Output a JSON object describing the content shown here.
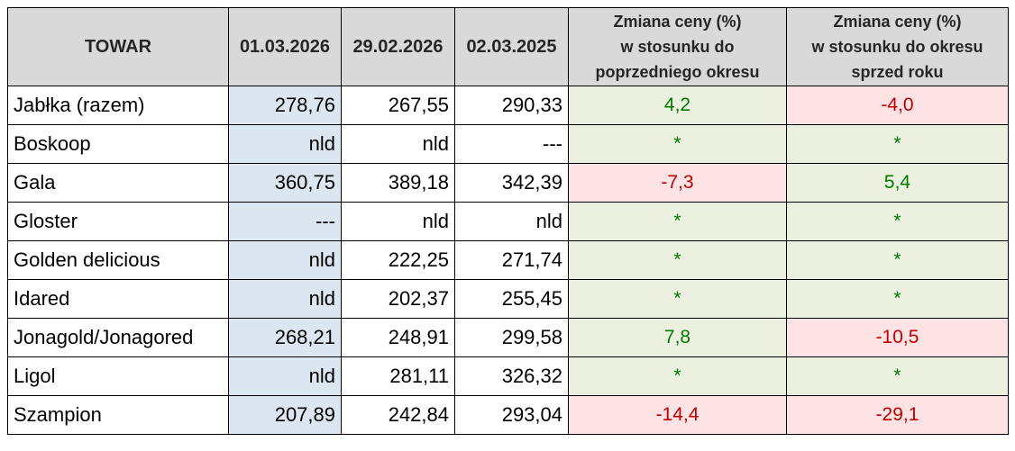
{
  "header": {
    "product": "TOWAR",
    "date1": "01.03.2026",
    "date2": "29.02.2026",
    "date3": "02.03.2025",
    "change_prev": [
      "Zmiana ceny (%)",
      "w stosunku do",
      "poprzedniego okresu"
    ],
    "change_year": [
      "Zmiana ceny (%)",
      "w stosunku do okresu",
      "sprzed roku"
    ]
  },
  "colors": {
    "current_col": "#dce6f1",
    "positive_bg": "#ebf1de",
    "positive_text": "#007a00",
    "negative_bg": "#fde3e4",
    "negative_text": "#c00000"
  },
  "rows": [
    {
      "name": "Jabłka (razem)",
      "v1": "278,76",
      "v2": "267,55",
      "v3": "290,33",
      "c1": "4,2",
      "c1s": "pos",
      "c2": "-4,0",
      "c2s": "neg"
    },
    {
      "name": "Boskoop",
      "v1": "nld",
      "v2": "nld",
      "v3": "---",
      "c1": "*",
      "c1s": "pos",
      "c2": "*",
      "c2s": "pos"
    },
    {
      "name": "Gala",
      "v1": "360,75",
      "v2": "389,18",
      "v3": "342,39",
      "c1": "-7,3",
      "c1s": "neg",
      "c2": "5,4",
      "c2s": "pos"
    },
    {
      "name": "Gloster",
      "v1": "---",
      "v2": "nld",
      "v3": "nld",
      "c1": "*",
      "c1s": "pos",
      "c2": "*",
      "c2s": "pos"
    },
    {
      "name": "Golden delicious",
      "v1": "nld",
      "v2": "222,25",
      "v3": "271,74",
      "c1": "*",
      "c1s": "pos",
      "c2": "*",
      "c2s": "pos"
    },
    {
      "name": "Idared",
      "v1": "nld",
      "v2": "202,37",
      "v3": "255,45",
      "c1": "*",
      "c1s": "pos",
      "c2": "*",
      "c2s": "pos"
    },
    {
      "name": "Jonagold/Jonagored",
      "v1": "268,21",
      "v2": "248,91",
      "v3": "299,58",
      "c1": "7,8",
      "c1s": "pos",
      "c2": "-10,5",
      "c2s": "neg"
    },
    {
      "name": "Ligol",
      "v1": "nld",
      "v2": "281,11",
      "v3": "326,32",
      "c1": "*",
      "c1s": "pos",
      "c2": "*",
      "c2s": "pos"
    },
    {
      "name": "Szampion",
      "v1": "207,89",
      "v2": "242,84",
      "v3": "293,04",
      "c1": "-14,4",
      "c1s": "neg",
      "c2": "-29,1",
      "c2s": "neg"
    }
  ]
}
